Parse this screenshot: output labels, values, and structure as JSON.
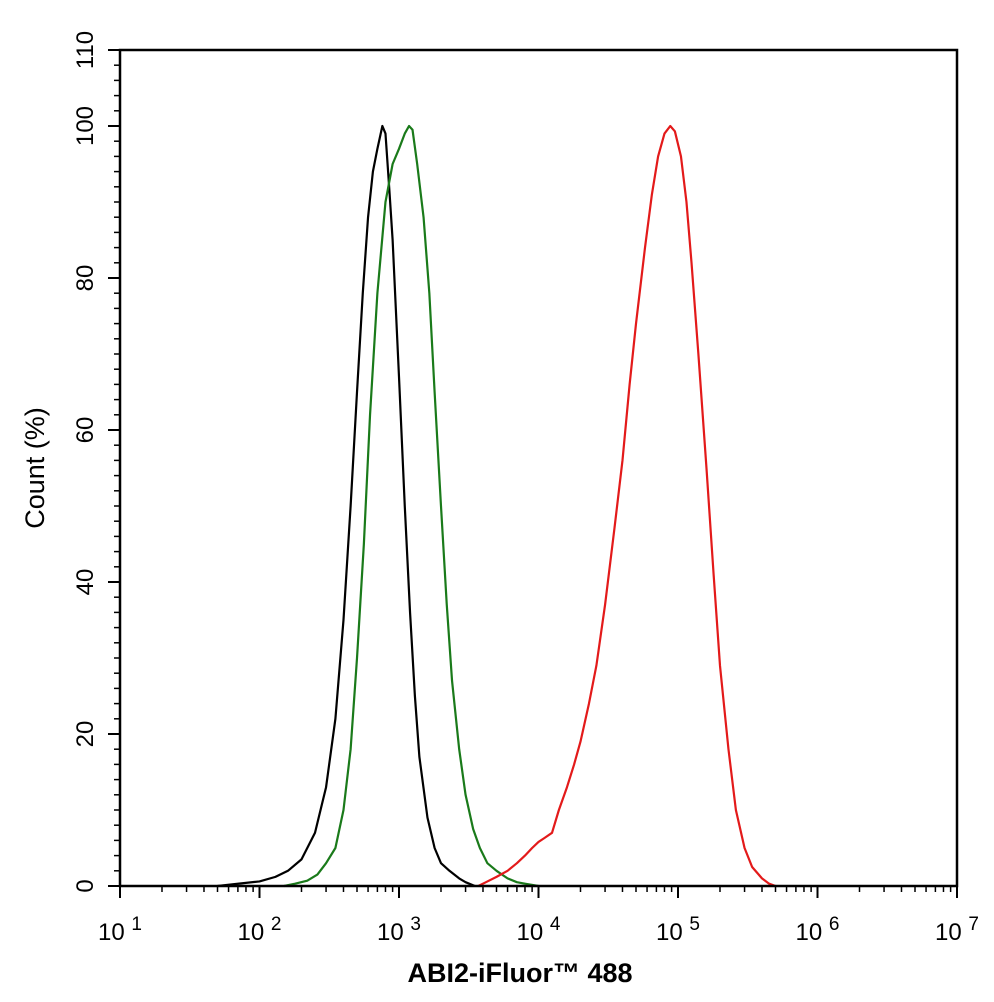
{
  "chart_data": {
    "type": "line",
    "xlabel": "ABI2-iFluor™ 488",
    "ylabel": "Count  (%)",
    "x_scale": "log",
    "xlim": [
      10,
      10000000
    ],
    "ylim": [
      0,
      110
    ],
    "x_ticks": [
      {
        "value": 10,
        "base": "10",
        "exp": "1"
      },
      {
        "value": 100,
        "base": "10",
        "exp": "2"
      },
      {
        "value": 1000,
        "base": "10",
        "exp": "3"
      },
      {
        "value": 10000,
        "base": "10",
        "exp": "4"
      },
      {
        "value": 100000,
        "base": "10",
        "exp": "5"
      },
      {
        "value": 1000000,
        "base": "10",
        "exp": "6"
      },
      {
        "value": 10000000,
        "base": "10",
        "exp": "7"
      }
    ],
    "y_ticks": [
      0,
      20,
      40,
      60,
      80,
      100,
      110
    ],
    "grid": false,
    "legend": "none",
    "series": [
      {
        "color": "#000000",
        "points": [
          [
            50,
            0
          ],
          [
            70,
            0.3
          ],
          [
            100,
            0.6
          ],
          [
            130,
            1.2
          ],
          [
            160,
            2
          ],
          [
            200,
            3.5
          ],
          [
            250,
            7
          ],
          [
            300,
            13
          ],
          [
            350,
            22
          ],
          [
            400,
            35
          ],
          [
            450,
            50
          ],
          [
            500,
            65
          ],
          [
            550,
            78
          ],
          [
            600,
            88
          ],
          [
            650,
            94
          ],
          [
            700,
            97
          ],
          [
            760,
            100
          ],
          [
            800,
            99
          ],
          [
            850,
            92
          ],
          [
            900,
            85
          ],
          [
            1000,
            67
          ],
          [
            1100,
            50
          ],
          [
            1200,
            36
          ],
          [
            1300,
            25
          ],
          [
            1400,
            17
          ],
          [
            1600,
            9
          ],
          [
            1800,
            5
          ],
          [
            2000,
            3
          ],
          [
            2300,
            2
          ],
          [
            2700,
            1
          ],
          [
            3000,
            0.5
          ],
          [
            3500,
            0
          ]
        ]
      },
      {
        "color": "#1a7a1a",
        "points": [
          [
            150,
            0
          ],
          [
            180,
            0.3
          ],
          [
            220,
            0.7
          ],
          [
            260,
            1.5
          ],
          [
            300,
            3
          ],
          [
            350,
            5
          ],
          [
            400,
            10
          ],
          [
            450,
            18
          ],
          [
            500,
            30
          ],
          [
            560,
            45
          ],
          [
            620,
            62
          ],
          [
            700,
            78
          ],
          [
            800,
            90
          ],
          [
            900,
            95
          ],
          [
            1000,
            97
          ],
          [
            1100,
            99
          ],
          [
            1180,
            100
          ],
          [
            1250,
            99.5
          ],
          [
            1350,
            95
          ],
          [
            1500,
            88
          ],
          [
            1650,
            78
          ],
          [
            1800,
            65
          ],
          [
            2000,
            50
          ],
          [
            2200,
            37
          ],
          [
            2400,
            27
          ],
          [
            2700,
            18
          ],
          [
            3000,
            12
          ],
          [
            3400,
            7.5
          ],
          [
            3800,
            5
          ],
          [
            4300,
            3
          ],
          [
            5000,
            2
          ],
          [
            6000,
            1
          ],
          [
            7000,
            0.5
          ],
          [
            8000,
            0.3
          ],
          [
            10000,
            0
          ]
        ]
      },
      {
        "color": "#e31a1a",
        "points": [
          [
            3700,
            0
          ],
          [
            4200,
            0.5
          ],
          [
            5000,
            1.2
          ],
          [
            6000,
            2
          ],
          [
            7000,
            3
          ],
          [
            8000,
            4
          ],
          [
            9000,
            5
          ],
          [
            10000,
            5.8
          ],
          [
            11000,
            6.3
          ],
          [
            12500,
            7
          ],
          [
            14000,
            10
          ],
          [
            16000,
            13
          ],
          [
            18000,
            16
          ],
          [
            20000,
            19
          ],
          [
            23000,
            24
          ],
          [
            26000,
            29
          ],
          [
            30000,
            37
          ],
          [
            35000,
            47
          ],
          [
            40000,
            56
          ],
          [
            45000,
            66
          ],
          [
            50000,
            74
          ],
          [
            58000,
            84
          ],
          [
            65000,
            91
          ],
          [
            72000,
            96
          ],
          [
            80000,
            99
          ],
          [
            88000,
            100
          ],
          [
            95000,
            99.3
          ],
          [
            105000,
            96
          ],
          [
            115000,
            90
          ],
          [
            125000,
            82
          ],
          [
            140000,
            70
          ],
          [
            160000,
            55
          ],
          [
            180000,
            41
          ],
          [
            200000,
            29
          ],
          [
            230000,
            18
          ],
          [
            260000,
            10
          ],
          [
            300000,
            5
          ],
          [
            340000,
            2.5
          ],
          [
            400000,
            1
          ],
          [
            450000,
            0.3
          ],
          [
            500000,
            0
          ]
        ]
      }
    ]
  }
}
